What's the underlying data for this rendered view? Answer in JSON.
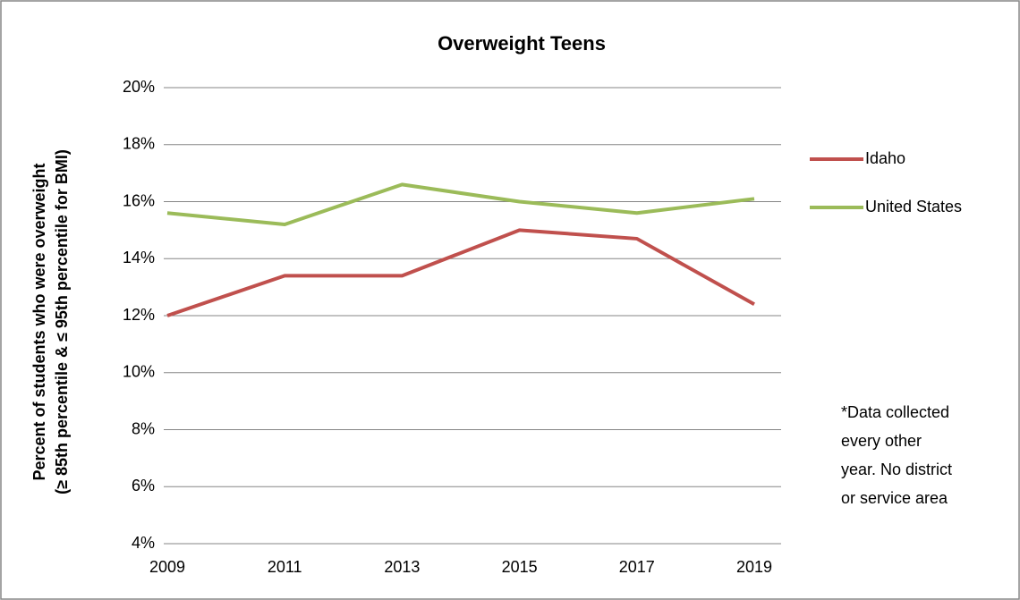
{
  "chart_data": {
    "type": "line",
    "title": "Overweight Teens",
    "ylabel": [
      "Percent of students who were overweight",
      "(≥ 85th percentile & ≤ 95th percentile for BMI)"
    ],
    "categories": [
      "2009",
      "2011",
      "2013",
      "2015",
      "2017",
      "2019"
    ],
    "series": [
      {
        "name": "Idaho",
        "color": "#c0504d",
        "values": [
          12.0,
          13.4,
          13.4,
          15.0,
          14.7,
          12.4
        ]
      },
      {
        "name": "United States",
        "color": "#9bbb59",
        "values": [
          15.6,
          15.2,
          16.6,
          16.0,
          15.6,
          16.1
        ]
      }
    ],
    "ylim": [
      4,
      20
    ],
    "yticks": [
      {
        "value": 4,
        "label": "4%"
      },
      {
        "value": 6,
        "label": "6%"
      },
      {
        "value": 8,
        "label": "8%"
      },
      {
        "value": 10,
        "label": "10%"
      },
      {
        "value": 12,
        "label": "12%"
      },
      {
        "value": 14,
        "label": "14%"
      },
      {
        "value": 16,
        "label": "16%"
      },
      {
        "value": 18,
        "label": "18%"
      },
      {
        "value": 20,
        "label": "20%"
      }
    ],
    "grid": true,
    "legend": "right",
    "annotation": [
      "*Data collected",
      "every other",
      "year. No district",
      "or service area"
    ]
  }
}
